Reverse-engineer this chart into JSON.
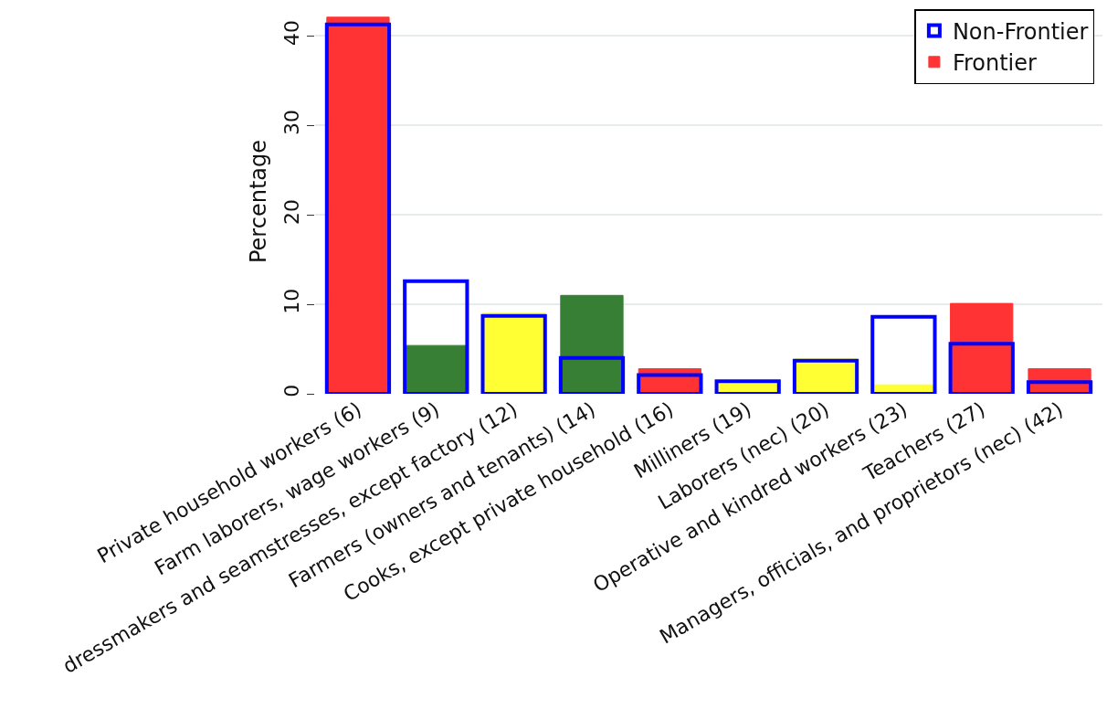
{
  "chart_data": {
    "type": "bar",
    "ylabel": "Percentage",
    "categories": [
      "Private household workers (6)",
      "Farm laborers, wage workers (9)",
      "dressmakers and seamstresses, except factory (12)",
      "Farmers (owners and tenants) (14)",
      "Cooks, except private household (16)",
      "Milliners (19)",
      "Laborers (nec) (20)",
      "Operative and kindred workers (23)",
      "Teachers (27)",
      "Managers, officials, and proprietors (nec) (42)"
    ],
    "series": [
      {
        "name": "Non-Frontier",
        "color": "#0000ff",
        "values": [
          41.3,
          12.6,
          8.7,
          4.0,
          2.1,
          1.4,
          3.7,
          8.6,
          5.6,
          1.3
        ]
      },
      {
        "name": "Frontier",
        "colors": [
          "#ff3333",
          "#367f34",
          "#ffff33",
          "#367f34",
          "#ff3333",
          "#ffff33",
          "#ffff33",
          "#ffff33",
          "#ff3333",
          "#ff3333"
        ],
        "values": [
          42.1,
          5.4,
          9.0,
          11.0,
          2.8,
          1.2,
          3.9,
          1.0,
          10.1,
          2.8
        ]
      }
    ],
    "ylim": [
      0,
      43
    ],
    "yticks": [
      0,
      10,
      20,
      30,
      40
    ],
    "grid": "y",
    "legend": "top right"
  }
}
